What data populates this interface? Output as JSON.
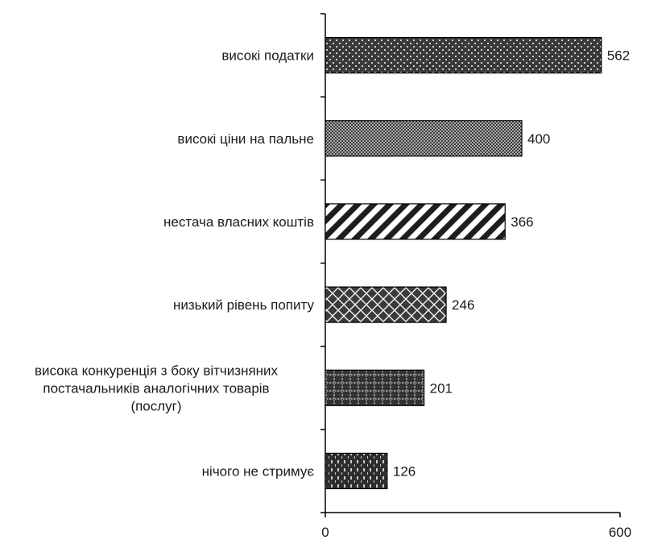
{
  "chart_data": {
    "type": "bar",
    "orientation": "horizontal",
    "categories": [
      "високі податки",
      "високі ціни на пальне",
      "нестача власних коштів",
      "низький рівень попиту",
      "висока конкуренція з боку вітчизняних постачальників аналогічних товарів (послуг)",
      "нічого не стримує"
    ],
    "category_lines": [
      [
        "високі податки"
      ],
      [
        "високі ціни на пальне"
      ],
      [
        "нестача власних коштів"
      ],
      [
        "низький рівень попиту"
      ],
      [
        "висока конкуренція з боку вітчизняних",
        "постачальників аналогічних товарів",
        "(послуг)"
      ],
      [
        "нічого не стримує"
      ]
    ],
    "values": [
      562,
      400,
      366,
      246,
      201,
      126
    ],
    "value_labels": [
      "562",
      "400",
      "366",
      "246",
      "201",
      "126"
    ],
    "patterns": [
      "dots",
      "dense-dots",
      "diagonal-stripes",
      "weave",
      "grid",
      "dashes"
    ],
    "xlim": [
      0,
      600
    ],
    "x_ticks": [
      0,
      600
    ],
    "x_tick_labels": [
      "0",
      "600"
    ],
    "title": "",
    "xlabel": "",
    "ylabel": "",
    "grid": false,
    "legend": "none",
    "colors": {
      "bar_fill": "#3a3a3a",
      "pattern": "#ffffff",
      "axis": "#000000",
      "text": "#1a1a1a"
    }
  }
}
